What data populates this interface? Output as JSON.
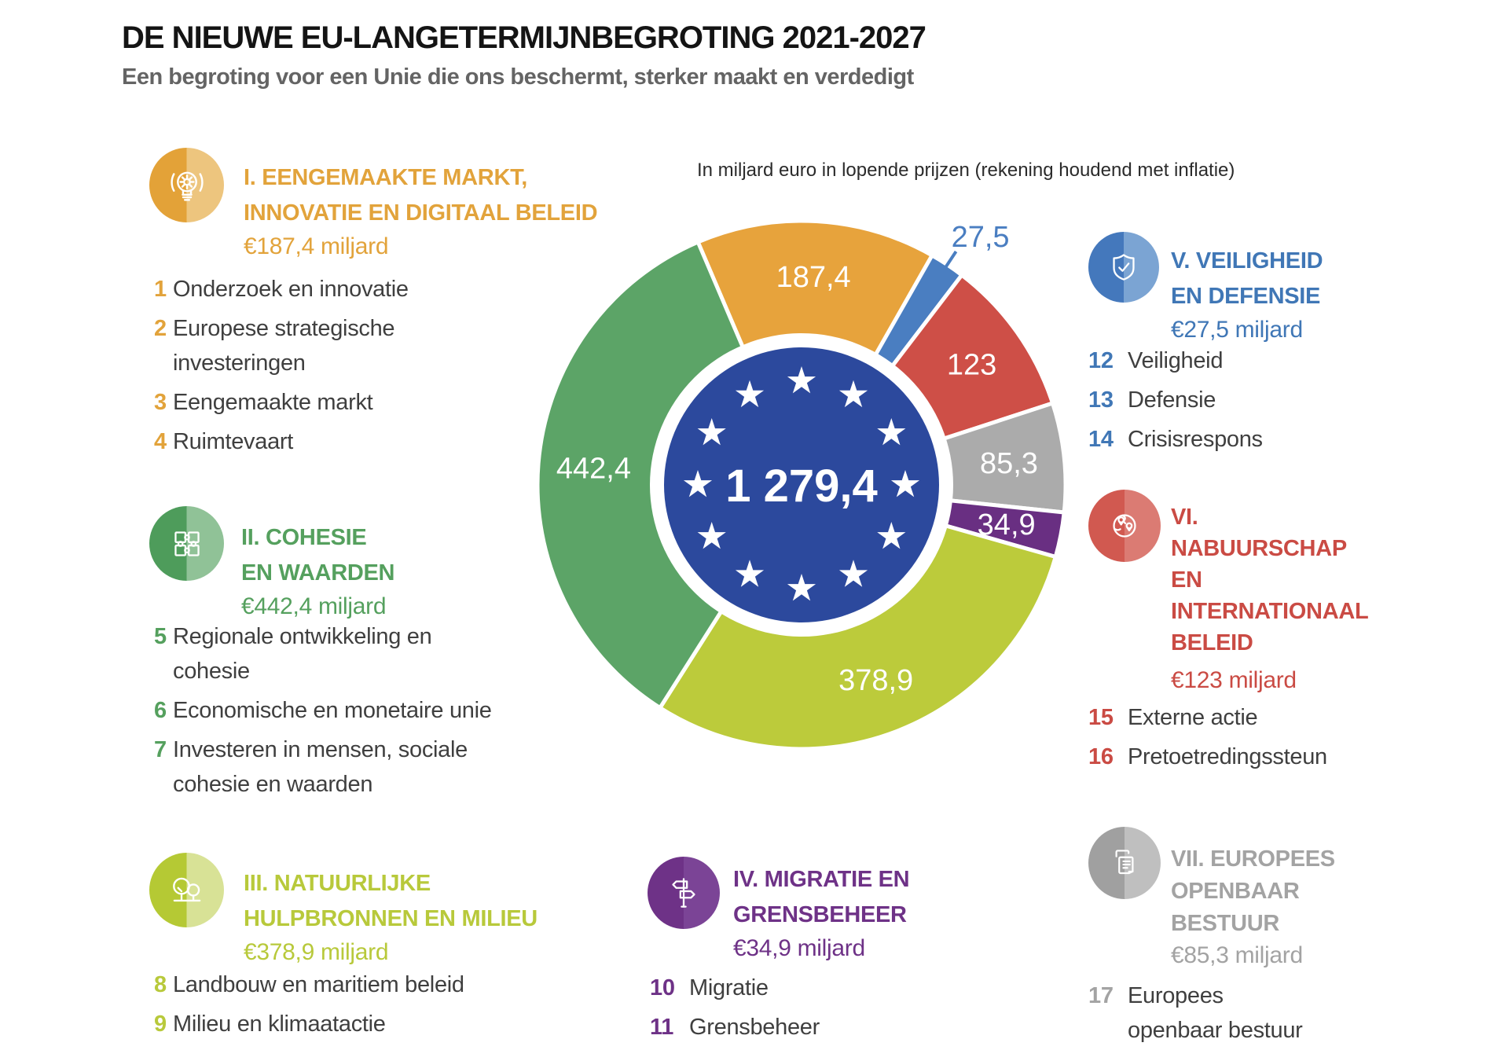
{
  "title": "DE NIEUWE EU-LANGETERMIJNBEGROTING 2021-2027",
  "subtitle": "Een begroting voor een Unie die ons beschermt, sterker maakt en verdedigt",
  "unit_note": "In miljard euro in lopende prijzen (rekening houdend met inflatie)",
  "sections": [
    {
      "numeral": "I",
      "heading": "I. EENGEMAAKTE MARKT,\nINNOVATIE EN DIGITAAL BELEID",
      "amount": "€187,4 miljard",
      "color": "#E2A33B",
      "circle": [
        "#E3A238",
        "#EDC57E"
      ],
      "icon": "lightbulb-gear",
      "items": [
        {
          "n": "1",
          "t": "Onderzoek en innovatie"
        },
        {
          "n": "2",
          "t": "Europese strategische investeringen"
        },
        {
          "n": "3",
          "t": "Eengemaakte markt"
        },
        {
          "n": "4",
          "t": "Ruimtevaart"
        }
      ]
    },
    {
      "numeral": "II",
      "heading": "II. COHESIE\nEN WAARDEN",
      "amount": "€442,4 miljard",
      "color": "#55A05E",
      "circle": [
        "#4E9C5B",
        "#90C297"
      ],
      "icon": "puzzle",
      "items": [
        {
          "n": "5",
          "t": "Regionale ontwikkeling en cohesie"
        },
        {
          "n": "6",
          "t": "Economische en monetaire unie"
        },
        {
          "n": "7",
          "t": "Investeren in mensen, sociale cohesie en waarden"
        }
      ]
    },
    {
      "numeral": "III",
      "heading": "III. NATUURLIJKE\nHULPBRONNEN EN MILIEU",
      "amount": "€378,9 miljard",
      "color": "#B8C93B",
      "circle": [
        "#B5C934",
        "#D8E296"
      ],
      "icon": "trees",
      "items": [
        {
          "n": "8",
          "t": "Landbouw en maritiem beleid"
        },
        {
          "n": "9",
          "t": "Milieu en klimaatactie"
        }
      ]
    },
    {
      "numeral": "IV",
      "heading": "IV. MIGRATIE EN\nGRENSBEHEER",
      "amount": "€34,9 miljard",
      "color": "#6E3287",
      "circle": [
        "#6E3287",
        "#7B4496"
      ],
      "icon": "signpost",
      "items": [
        {
          "n": "10",
          "t": "Migratie"
        },
        {
          "n": "11",
          "t": "Grensbeheer"
        }
      ]
    },
    {
      "numeral": "V",
      "heading": "V. VEILIGHEID\nEN DEFENSIE",
      "amount": "€27,5 miljard",
      "color": "#4077B6",
      "circle": [
        "#4478BC",
        "#7BA4D3"
      ],
      "icon": "shield-check",
      "items": [
        {
          "n": "12",
          "t": "Veiligheid"
        },
        {
          "n": "13",
          "t": "Defensie"
        },
        {
          "n": "14",
          "t": "Crisisrespons"
        }
      ]
    },
    {
      "numeral": "VI",
      "heading": "VI.\nNABUURSCHAP\nEN\nINTERNATIONAAL\nBELEID",
      "amount": "€123 miljard",
      "color": "#CA4B44",
      "circle": [
        "#D15950",
        "#DB7B73"
      ],
      "icon": "globe-pins",
      "items": [
        {
          "n": "15",
          "t": "Externe actie"
        },
        {
          "n": "16",
          "t": "Pretoetredingssteun"
        }
      ]
    },
    {
      "numeral": "VII",
      "heading": "VII. EUROPEES\nOPENBAAR\nBESTUUR",
      "amount": "€85,3 miljard",
      "color": "#A3A3A3",
      "circle": [
        "#A0A0A0",
        "#BFBFBF"
      ],
      "icon": "documents",
      "items": [
        {
          "n": "17",
          "t": "Europees openbaar bestuur"
        }
      ]
    }
  ],
  "chart_data": {
    "type": "pie",
    "title": "DE NIEUWE EU-LANGETERMIJNBEGROTING 2021-2027",
    "unit": "miljard euro, lopende prijzen",
    "total": 1279.4,
    "total_label": "1 279,4",
    "center_color": "#2C499D",
    "start_angle_deg": -23.1,
    "legend_position": "around",
    "segments": [
      {
        "name": "I. Eengemaakte markt, innovatie en digitaal beleid",
        "label": "187,4",
        "value": 187.4,
        "color": "#E7A33C",
        "label_outside": false
      },
      {
        "name": "V. Veiligheid en defensie",
        "label": "27,5",
        "value": 27.5,
        "color": "#4A7EC1",
        "label_outside": true
      },
      {
        "name": "VI. Nabuurschap en internationaal beleid",
        "label": "123",
        "value": 123,
        "color": "#CE4F47",
        "label_outside": false
      },
      {
        "name": "VII. Europees openbaar bestuur",
        "label": "85,3",
        "value": 85.3,
        "color": "#ABABAB",
        "label_outside": false
      },
      {
        "name": "IV. Migratie en grensbeheer",
        "label": "34,9",
        "value": 34.9,
        "color": "#692F82",
        "label_outside": false
      },
      {
        "name": "III. Natuurlijke hulpbronnen en milieu",
        "label": "378,9",
        "value": 378.9,
        "color": "#BCCB3B",
        "label_outside": false
      },
      {
        "name": "II. Cohesie en waarden",
        "label": "442,4",
        "value": 442.4,
        "color": "#5CA467",
        "label_outside": false
      }
    ]
  }
}
